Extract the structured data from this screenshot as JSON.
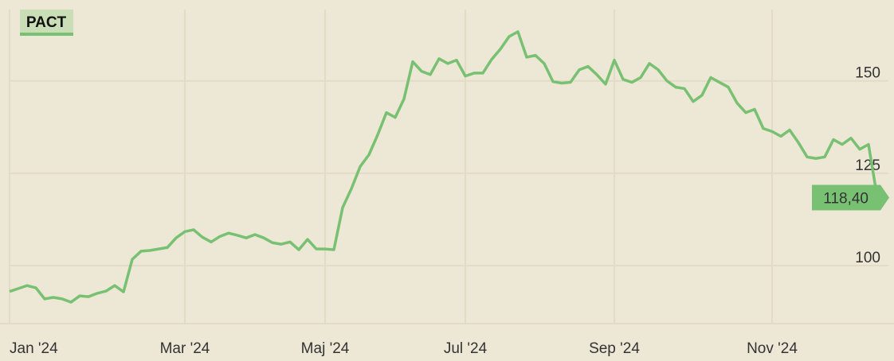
{
  "chart_data": {
    "type": "line",
    "categories": [
      "Jan '24",
      null,
      null,
      null,
      null,
      null,
      null,
      null,
      null,
      null,
      null,
      null,
      null,
      null,
      null,
      null,
      null,
      null,
      null,
      null,
      "Mar '24",
      null,
      null,
      null,
      null,
      null,
      null,
      null,
      null,
      null,
      null,
      null,
      null,
      null,
      null,
      null,
      "Maj '24",
      null,
      null,
      null,
      null,
      null,
      null,
      null,
      null,
      null,
      null,
      null,
      null,
      null,
      null,
      null,
      "Jul '24",
      null,
      null,
      null,
      null,
      null,
      null,
      null,
      null,
      null,
      null,
      null,
      null,
      null,
      null,
      null,
      null,
      "Sep '24",
      null,
      null,
      null,
      null,
      null,
      null,
      null,
      null,
      null,
      null,
      null,
      null,
      null,
      null,
      null,
      null,
      null,
      "Nov '24",
      null,
      null,
      null,
      null,
      null,
      null,
      null,
      null,
      null,
      null,
      null,
      null
    ],
    "series": [
      {
        "name": "PACT",
        "color": "#78c172",
        "values": [
          93,
          93.8,
          94.6,
          94,
          91,
          91.4,
          91,
          90.1,
          91.8,
          91.6,
          92.5,
          93.1,
          94.6,
          92.9,
          101.7,
          103.9,
          104.1,
          104.5,
          104.9,
          107.5,
          109.2,
          109.7,
          107.7,
          106.4,
          107.9,
          108.8,
          108.2,
          107.5,
          108.4,
          107.5,
          106.2,
          105.8,
          106.4,
          104.3,
          107.1,
          104.5,
          104.5,
          104.3,
          115.7,
          120.8,
          126.8,
          130,
          135.4,
          141.4,
          140.1,
          145.1,
          155.2,
          152.6,
          151.7,
          156,
          154.7,
          155.6,
          151.3,
          152.1,
          152.1,
          155.8,
          158.6,
          162,
          163.3,
          156.4,
          156.9,
          154.7,
          149.8,
          149.4,
          149.6,
          153,
          153.9,
          151.7,
          149.1,
          155.6,
          150.4,
          149.6,
          150.9,
          154.7,
          153,
          150,
          148.3,
          147.9,
          144.4,
          146.1,
          150.9,
          149.6,
          148.3,
          144,
          141.4,
          142.3,
          137.1,
          136.3,
          135,
          136.7,
          133.3,
          129.4,
          129,
          129.4,
          134.1,
          132.8,
          134.5,
          131.5,
          132.8,
          118.4
        ],
        "value_labels": [
          null,
          null,
          null,
          null,
          null,
          null,
          null,
          null,
          null,
          null,
          null,
          null,
          null,
          null,
          null,
          null,
          null,
          null,
          null,
          null,
          null,
          null,
          null,
          null,
          null,
          null,
          null,
          null,
          null,
          null,
          null,
          null,
          null,
          null,
          null,
          null,
          null,
          null,
          null,
          null,
          null,
          null,
          null,
          null,
          null,
          null,
          null,
          null,
          null,
          null,
          null,
          null,
          null,
          null,
          null,
          null,
          null,
          null,
          null,
          null,
          null,
          null,
          null,
          null,
          null,
          null,
          null,
          null,
          null,
          null,
          null,
          null,
          null,
          null,
          null,
          null,
          null,
          null,
          null,
          null,
          null,
          null,
          null,
          null,
          null,
          null,
          null,
          null,
          null,
          null,
          null,
          null,
          null,
          null,
          null,
          null,
          null,
          null,
          null,
          "118,40"
        ]
      }
    ],
    "ylim": [
      84.3,
      169.3
    ],
    "yticks": [
      100,
      125,
      150
    ],
    "grid": true
  }
}
